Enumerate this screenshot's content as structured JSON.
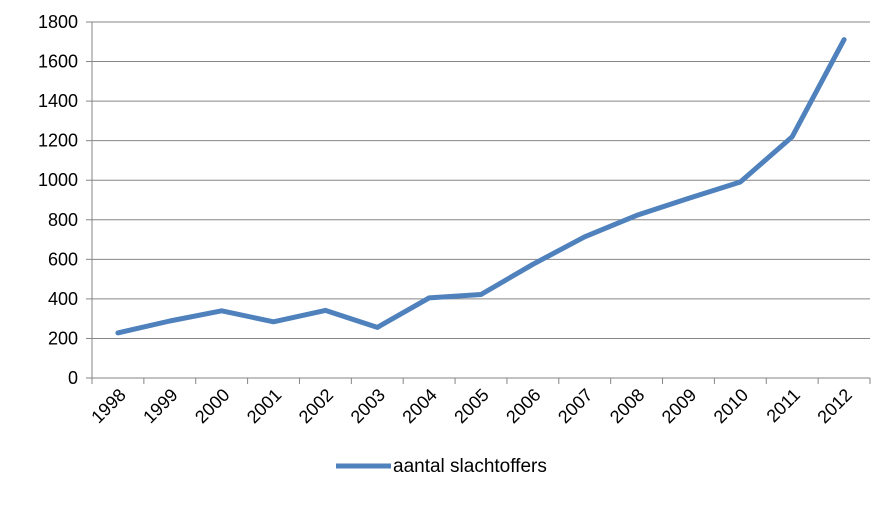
{
  "chart_data": {
    "type": "line",
    "title": "",
    "xlabel": "",
    "ylabel": "",
    "categories": [
      "1998",
      "1999",
      "2000",
      "2001",
      "2002",
      "2003",
      "2004",
      "2005",
      "2006",
      "2007",
      "2008",
      "2009",
      "2010",
      "2011",
      "2012"
    ],
    "series": [
      {
        "name": "aantal slachtoffers",
        "color": "#4F81BD",
        "values": [
          228,
          288,
          340,
          284,
          342,
          256,
          405,
          422,
          575,
          714,
          822,
          908,
          991,
          1220,
          1711
        ]
      }
    ],
    "ylim": [
      0,
      1800
    ],
    "yticks": [
      "0",
      "200",
      "400",
      "600",
      "800",
      "1000",
      "1200",
      "1400",
      "1600",
      "1800"
    ],
    "grid": true,
    "legend_position": "bottom"
  }
}
